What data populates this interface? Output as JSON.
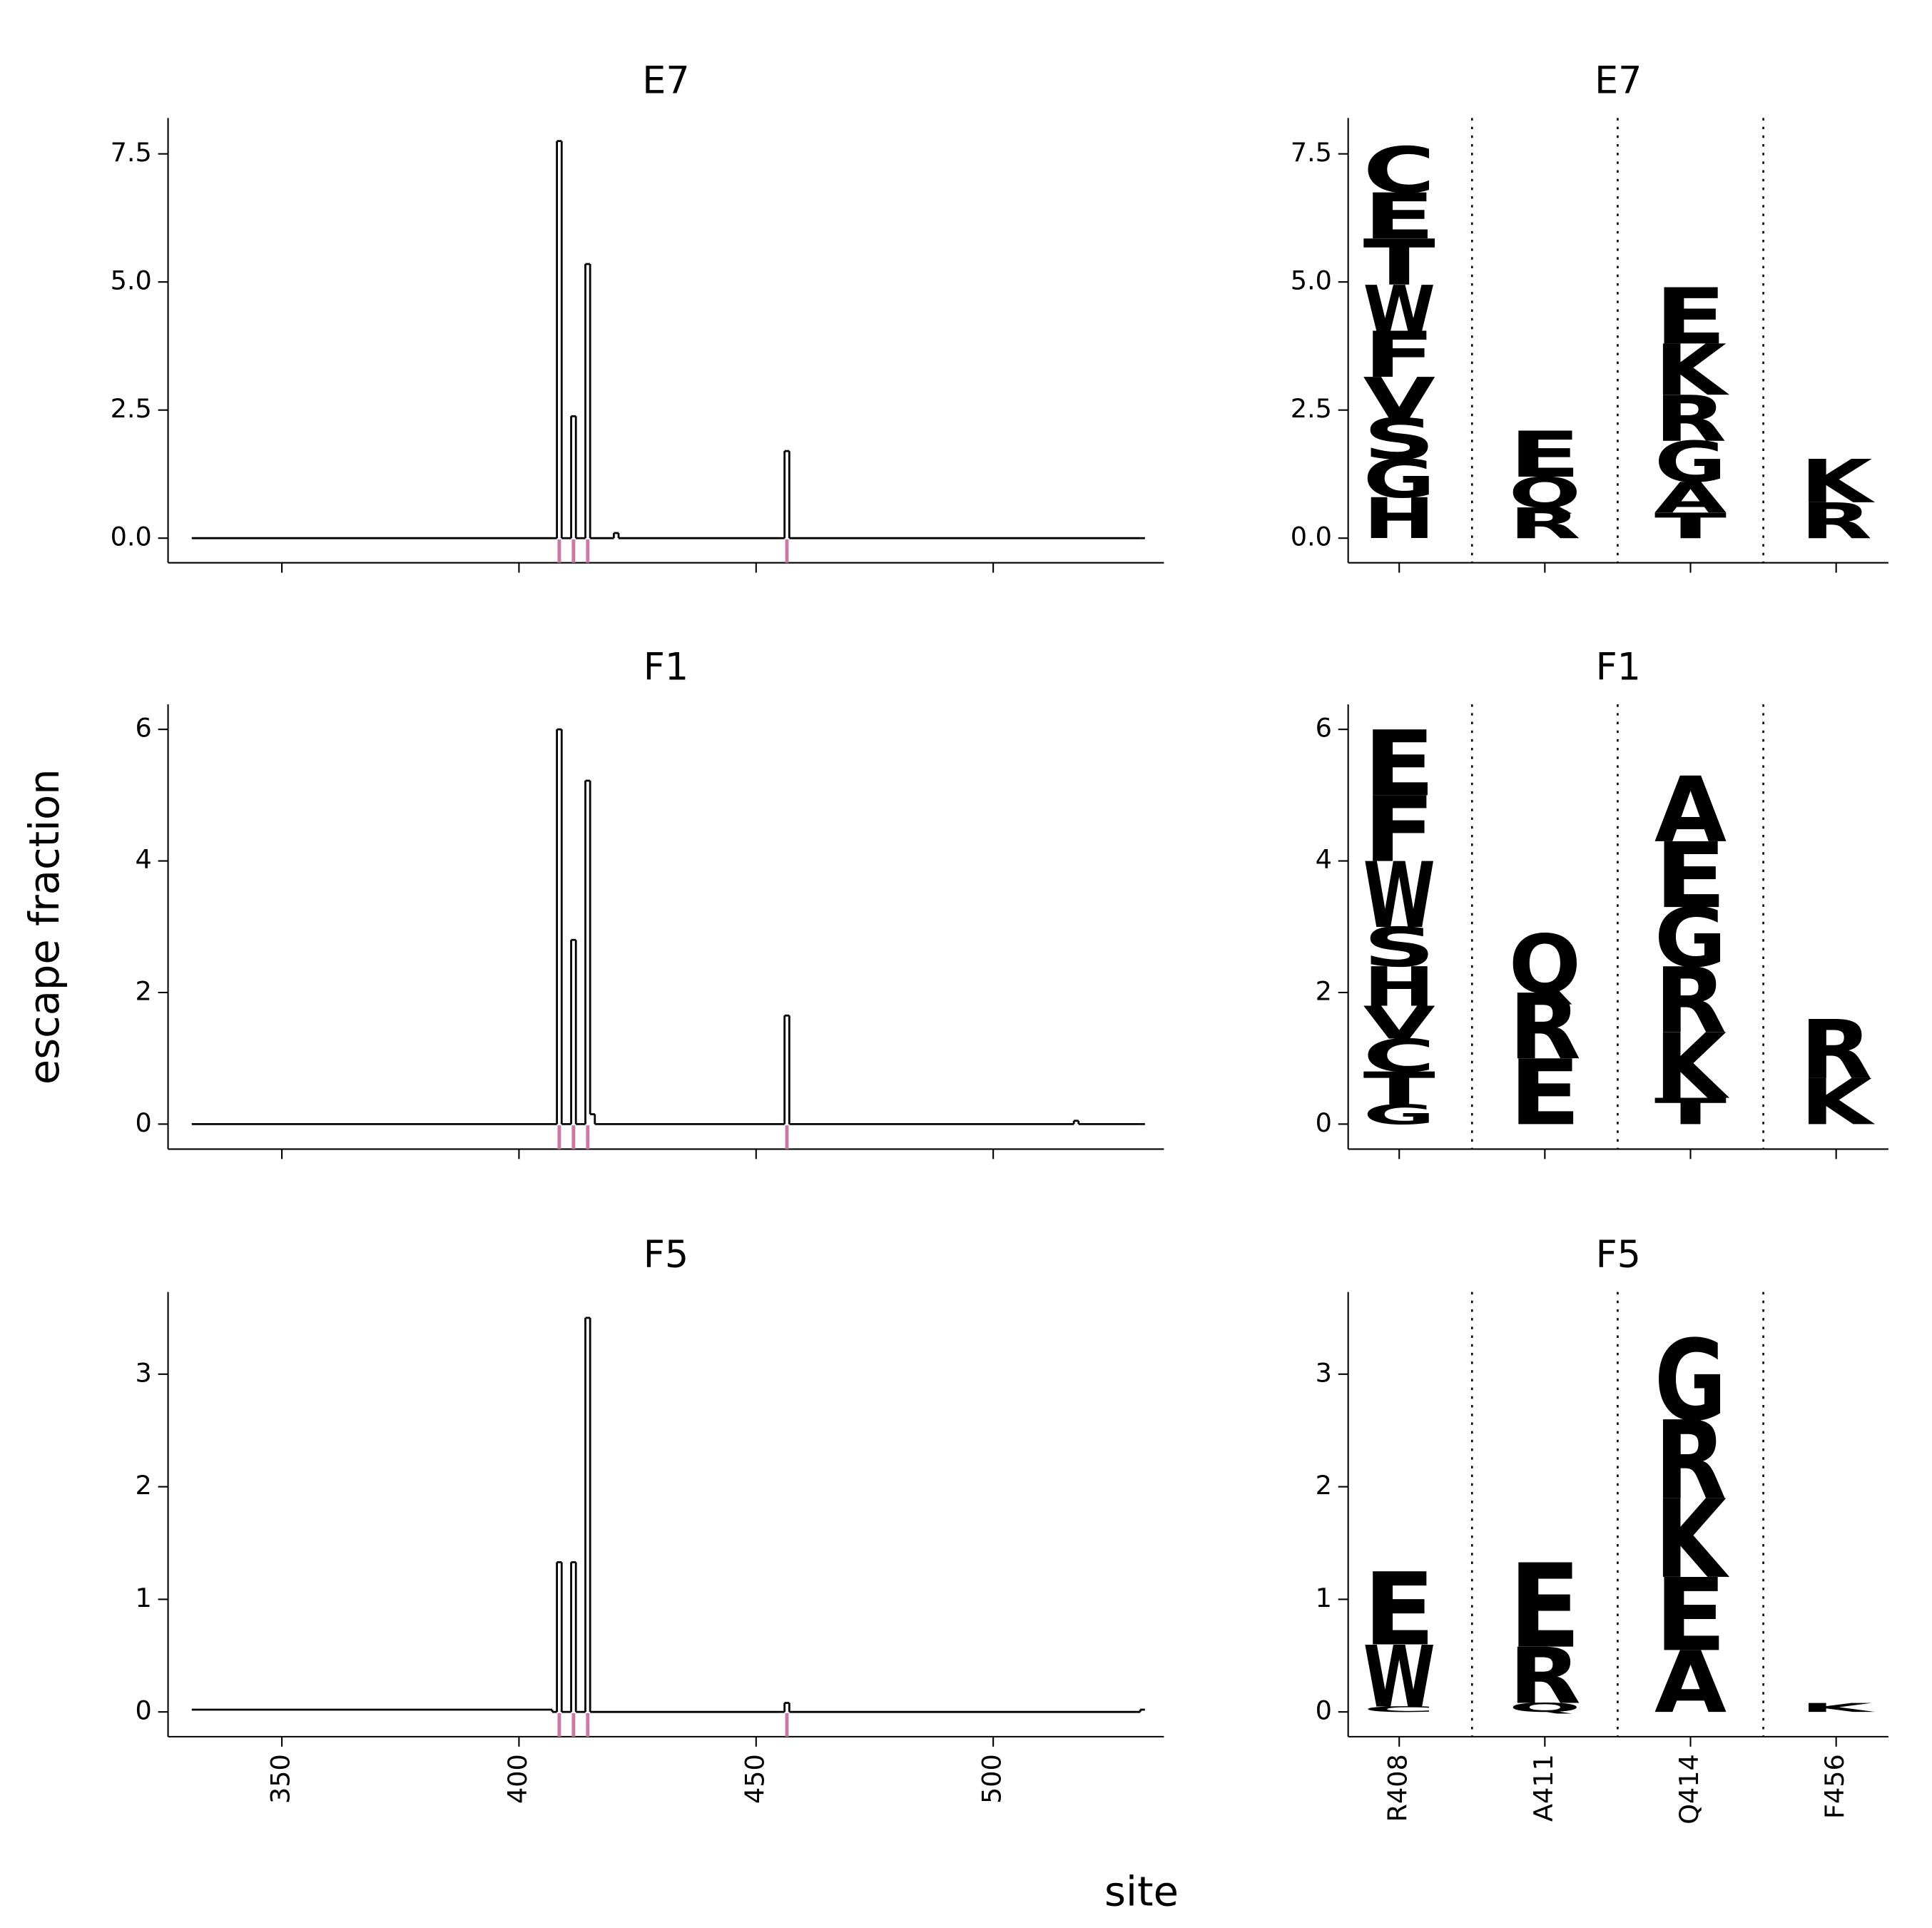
{
  "ylabel": "escape fraction",
  "xlabel": "site",
  "chart_data": [
    {
      "type": "line",
      "title": "E7",
      "xlim": [
        326,
        536
      ],
      "xticks": [
        350,
        400,
        450,
        500
      ],
      "show_xticklabels": false,
      "ylim": [
        -0.48,
        8.2
      ],
      "yticks": [
        {
          "value": 0,
          "label": "0.0"
        },
        2.5,
        {
          "value": 5,
          "label": "5.0"
        },
        7.5
      ],
      "highlight_sites": [
        408,
        411,
        414,
        456
      ],
      "highlight_color": "#cc79a7",
      "series": [
        {
          "color": "#000000",
          "x": [
            331,
            407,
            408,
            409,
            410,
            411,
            412,
            413,
            414,
            415,
            420,
            421,
            455,
            456,
            457,
            531
          ],
          "values": [
            0,
            0,
            7.75,
            0,
            0,
            2.38,
            0,
            0,
            5.35,
            0,
            0.1,
            0,
            0,
            1.7,
            0,
            0
          ]
        }
      ]
    },
    {
      "type": "logo",
      "title": "E7",
      "categories": [
        "R408",
        "A411",
        "Q414",
        "F456"
      ],
      "show_xticklabels": false,
      "ylim": [
        -0.48,
        8.2
      ],
      "yticks": [
        {
          "value": 0,
          "label": "0.0"
        },
        2.5,
        {
          "value": 5,
          "label": "5.0"
        },
        7.5
      ],
      "stacks": [
        [
          {
            "letter": "H",
            "value": 0.8,
            "color": "#662506"
          },
          {
            "letter": "G",
            "value": 0.75,
            "color": "#662506"
          },
          {
            "letter": "S",
            "value": 0.8,
            "color": "#662506"
          },
          {
            "letter": "V",
            "value": 0.8,
            "color": "#662506"
          },
          {
            "letter": "F",
            "value": 0.9,
            "color": "#ec7014"
          },
          {
            "letter": "W",
            "value": 0.9,
            "color": "#ec7014"
          },
          {
            "letter": "T",
            "value": 0.9,
            "color": "#662506"
          },
          {
            "letter": "E",
            "value": 0.9,
            "color": "#662506"
          },
          {
            "letter": "C",
            "value": 0.9,
            "color": "#993404"
          }
        ],
        [
          {
            "letter": "R",
            "value": 0.6,
            "color": "#fee391"
          },
          {
            "letter": "Q",
            "value": 0.6,
            "color": "#ec7014"
          },
          {
            "letter": "E",
            "value": 0.9,
            "color": "#fec44f"
          }
        ],
        [
          {
            "letter": "T",
            "value": 0.5,
            "color": "#662506"
          },
          {
            "letter": "A",
            "value": 0.6,
            "color": "#993404"
          },
          {
            "letter": "G",
            "value": 0.8,
            "color": "#662506"
          },
          {
            "letter": "R",
            "value": 0.9,
            "color": "#ec7014"
          },
          {
            "letter": "K",
            "value": 1.0,
            "color": "#cc4c02"
          },
          {
            "letter": "E",
            "value": 1.1,
            "color": "#cc4c02"
          }
        ],
        [
          {
            "letter": "R",
            "value": 0.7,
            "color": "#993404"
          },
          {
            "letter": "K",
            "value": 0.85,
            "color": "#993404"
          }
        ]
      ]
    },
    {
      "type": "line",
      "title": "F1",
      "xlim": [
        326,
        536
      ],
      "xticks": [
        350,
        400,
        450,
        500
      ],
      "show_xticklabels": false,
      "ylim": [
        -0.38,
        6.38
      ],
      "yticks": [
        0,
        2,
        4,
        6
      ],
      "highlight_sites": [
        408,
        411,
        414,
        456
      ],
      "highlight_color": "#cc79a7",
      "series": [
        {
          "color": "#000000",
          "x": [
            331,
            407,
            408,
            409,
            410,
            411,
            412,
            413,
            414,
            415,
            416,
            455,
            456,
            457,
            517,
            518,
            531
          ],
          "values": [
            0,
            0,
            6.0,
            0,
            0,
            2.8,
            0,
            0,
            5.22,
            0.15,
            0,
            0,
            1.65,
            0,
            0.05,
            0,
            0
          ]
        }
      ]
    },
    {
      "type": "logo",
      "title": "F1",
      "categories": [
        "R408",
        "A411",
        "Q414",
        "F456"
      ],
      "show_xticklabels": false,
      "ylim": [
        -0.38,
        6.38
      ],
      "yticks": [
        0,
        2,
        4,
        6
      ],
      "stacks": [
        [
          {
            "letter": "G",
            "value": 0.3,
            "color": "#662506"
          },
          {
            "letter": "T",
            "value": 0.5,
            "color": "#662506"
          },
          {
            "letter": "C",
            "value": 0.5,
            "color": "#993404"
          },
          {
            "letter": "V",
            "value": 0.5,
            "color": "#662506"
          },
          {
            "letter": "H",
            "value": 0.6,
            "color": "#662506"
          },
          {
            "letter": "S",
            "value": 0.6,
            "color": "#662506"
          },
          {
            "letter": "W",
            "value": 1.0,
            "color": "#ec7014"
          },
          {
            "letter": "F",
            "value": 1.0,
            "color": "#ec7014"
          },
          {
            "letter": "E",
            "value": 1.0,
            "color": "#662506"
          }
        ],
        [
          {
            "letter": "E",
            "value": 1.0,
            "color": "#fec44f"
          },
          {
            "letter": "R",
            "value": 1.0,
            "color": "#fee391"
          },
          {
            "letter": "Q",
            "value": 0.9,
            "color": "#ec7014"
          }
        ],
        [
          {
            "letter": "T",
            "value": 0.4,
            "color": "#662506"
          },
          {
            "letter": "K",
            "value": 1.0,
            "color": "#ec7014"
          },
          {
            "letter": "R",
            "value": 1.0,
            "color": "#ec7014"
          },
          {
            "letter": "G",
            "value": 0.9,
            "color": "#662506"
          },
          {
            "letter": "E",
            "value": 1.0,
            "color": "#cc4c02"
          },
          {
            "letter": "A",
            "value": 1.0,
            "color": "#662506"
          }
        ],
        [
          {
            "letter": "K",
            "value": 0.7,
            "color": "#993404"
          },
          {
            "letter": "R",
            "value": 0.9,
            "color": "#993404"
          }
        ]
      ]
    },
    {
      "type": "line",
      "title": "F5",
      "xlim": [
        326,
        536
      ],
      "xticks": [
        350,
        400,
        450,
        500
      ],
      "show_xticklabels": true,
      "ylim": [
        -0.22,
        3.73
      ],
      "yticks": [
        0,
        1,
        2,
        3
      ],
      "highlight_sites": [
        408,
        411,
        414,
        456
      ],
      "highlight_color": "#cc79a7",
      "series": [
        {
          "color": "#000000",
          "x": [
            331,
            407,
            408,
            409,
            410,
            411,
            412,
            413,
            414,
            415,
            455,
            456,
            457,
            531
          ],
          "values": [
            0.02,
            0,
            1.33,
            0,
            0,
            1.33,
            0,
            0,
            3.5,
            0,
            0,
            0.08,
            0,
            0.02
          ]
        }
      ]
    },
    {
      "type": "logo",
      "title": "F5",
      "categories": [
        "R408",
        "A411",
        "Q414",
        "F456"
      ],
      "show_xticklabels": true,
      "ylim": [
        -0.22,
        3.73
      ],
      "yticks": [
        0,
        1,
        2,
        3
      ],
      "stacks": [
        [
          {
            "letter": "C",
            "value": 0.05,
            "color": "#993404"
          },
          {
            "letter": "W",
            "value": 0.55,
            "color": "#ec7014"
          },
          {
            "letter": "E",
            "value": 0.65,
            "color": "#662506"
          }
        ],
        [
          {
            "letter": "Q",
            "value": 0.08,
            "color": "#ec7014"
          },
          {
            "letter": "R",
            "value": 0.5,
            "color": "#fee391"
          },
          {
            "letter": "E",
            "value": 0.75,
            "color": "#fec44f"
          }
        ],
        [
          {
            "letter": "A",
            "value": 0.55,
            "color": "#662506"
          },
          {
            "letter": "E",
            "value": 0.65,
            "color": "#cc4c02"
          },
          {
            "letter": "K",
            "value": 0.7,
            "color": "#ec7014"
          },
          {
            "letter": "R",
            "value": 0.7,
            "color": "#ec7014"
          },
          {
            "letter": "G",
            "value": 0.72,
            "color": "#662506"
          }
        ],
        [
          {
            "letter": "K",
            "value": 0.08,
            "color": "#993404"
          }
        ]
      ]
    }
  ]
}
